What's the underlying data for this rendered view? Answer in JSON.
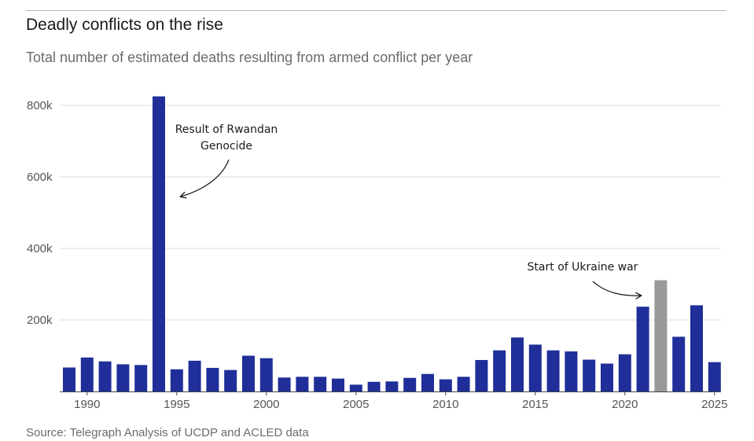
{
  "title": "Deadly conflicts on the rise",
  "subtitle": "Total number of estimated deaths resulting from armed conflict per year",
  "source": "Source: Telegraph Analysis of UCDP and ACLED data",
  "colors": {
    "bar": "#1f2e99",
    "highlight": "#999999",
    "grid": "#dcdcdc",
    "axis": "#444444"
  },
  "chart_data": {
    "type": "bar",
    "x": [
      1989,
      1990,
      1991,
      1992,
      1993,
      1994,
      1995,
      1996,
      1997,
      1998,
      1999,
      2000,
      2001,
      2002,
      2003,
      2004,
      2005,
      2006,
      2007,
      2008,
      2009,
      2010,
      2011,
      2012,
      2013,
      2014,
      2015,
      2016,
      2017,
      2018,
      2019,
      2020,
      2021,
      2022,
      2023,
      2024,
      2025
    ],
    "values": [
      67000,
      95000,
      84000,
      76000,
      74000,
      825000,
      62000,
      86000,
      66000,
      60000,
      100000,
      93000,
      39000,
      41000,
      41000,
      36000,
      19000,
      27000,
      28000,
      38000,
      49000,
      34000,
      41000,
      88000,
      115000,
      151000,
      131000,
      115000,
      112000,
      89000,
      78000,
      104000,
      237000,
      311000,
      153000,
      241000,
      82000
    ],
    "highlight": [
      2022
    ],
    "x_ticks": [
      1990,
      1995,
      2000,
      2005,
      2010,
      2015,
      2020,
      2025
    ],
    "x_tick_labels": [
      "1990",
      "1995",
      "2000",
      "2005",
      "2010",
      "2015",
      "2020",
      "2025"
    ],
    "y_ticks": [
      200000,
      400000,
      600000,
      800000
    ],
    "y_tick_labels": [
      "200k",
      "400k",
      "600k",
      "800k"
    ],
    "ylim": [
      0,
      840000
    ],
    "grid": true,
    "annotations": [
      {
        "lines": [
          "Result of Rwandan",
          "Genocide"
        ],
        "target_year": 1994
      },
      {
        "lines": [
          "Start of Ukraine war"
        ],
        "target_year": 2022
      }
    ]
  }
}
